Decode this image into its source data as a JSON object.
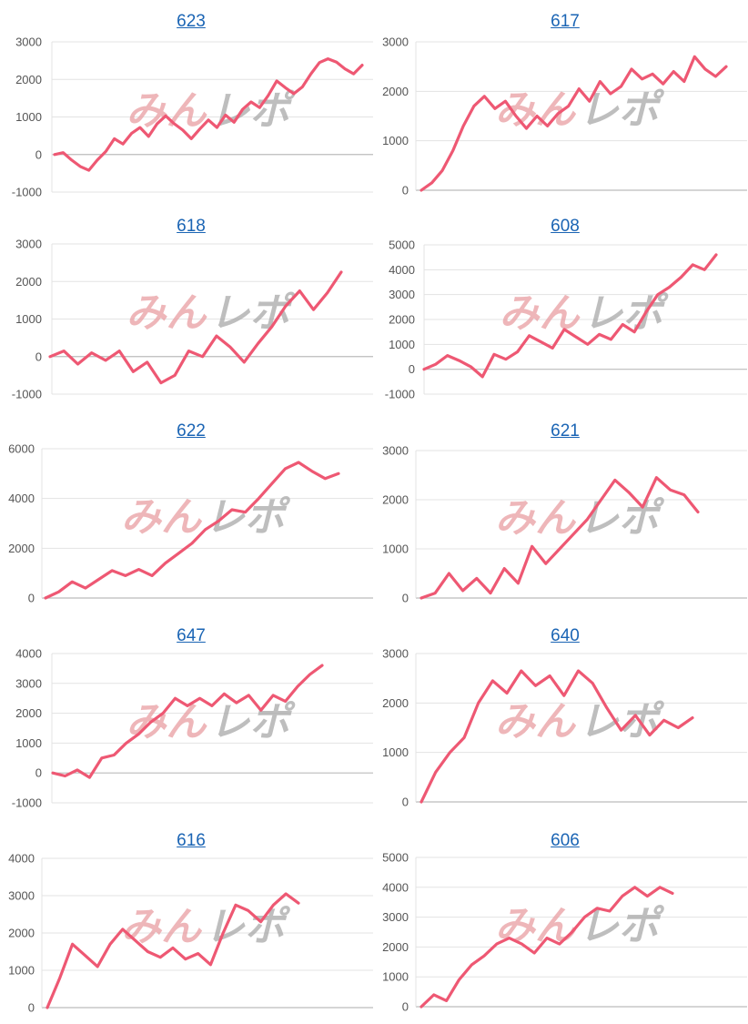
{
  "colors": {
    "line": "#ee5873",
    "title_link": "#1a64b4",
    "grid": "#e3e3e3",
    "axis": "#bcbcbc",
    "tick_text": "#555555"
  },
  "watermark": {
    "icon": "minrepo-watermark-logo",
    "text": "みんレポ"
  },
  "chart_data": [
    {
      "type": "line",
      "title": "623",
      "ylim": [
        -1000,
        3000
      ],
      "yticks": [
        -1000,
        0,
        1000,
        2000,
        3000
      ],
      "grid": true,
      "series": [
        {
          "y": [
            0,
            50,
            -150,
            -320,
            -420,
            -150,
            80,
            420,
            280,
            560,
            720,
            480,
            820,
            1030,
            820,
            650,
            420,
            680,
            920,
            720,
            1050,
            860,
            1200,
            1400,
            1250,
            1570,
            1960,
            1780,
            1620,
            1800,
            2150,
            2450,
            2550,
            2460,
            2280,
            2150,
            2380
          ]
        }
      ]
    },
    {
      "type": "line",
      "title": "617",
      "ylim": [
        0,
        3000
      ],
      "yticks": [
        0,
        1000,
        2000,
        3000
      ],
      "grid": true,
      "series": [
        {
          "y": [
            0,
            150,
            400,
            800,
            1300,
            1700,
            1900,
            1650,
            1800,
            1500,
            1250,
            1500,
            1300,
            1550,
            1700,
            2050,
            1800,
            2200,
            1950,
            2100,
            2450,
            2250,
            2350,
            2150,
            2400,
            2200,
            2700,
            2450,
            2300,
            2500
          ]
        }
      ]
    },
    {
      "type": "line",
      "title": "618",
      "ylim": [
        -1000,
        3000
      ],
      "yticks": [
        -1000,
        0,
        1000,
        2000,
        3000
      ],
      "grid": true,
      "series": [
        {
          "y": [
            0,
            150,
            -200,
            100,
            -100,
            150,
            -400,
            -150,
            -700,
            -500,
            150,
            0,
            550,
            250,
            -150,
            350,
            800,
            1350,
            1750,
            1250,
            1700,
            2250
          ]
        }
      ]
    },
    {
      "type": "line",
      "title": "608",
      "ylim": [
        -1000,
        5000
      ],
      "yticks": [
        -1000,
        0,
        1000,
        2000,
        3000,
        4000,
        5000
      ],
      "grid": true,
      "series": [
        {
          "y": [
            0,
            200,
            550,
            350,
            100,
            -300,
            600,
            400,
            700,
            1350,
            1100,
            850,
            1600,
            1300,
            1000,
            1400,
            1200,
            1800,
            1500,
            2300,
            3000,
            3300,
            3700,
            4200,
            4000,
            4600
          ]
        }
      ]
    },
    {
      "type": "line",
      "title": "622",
      "ylim": [
        0,
        6000
      ],
      "yticks": [
        0,
        2000,
        4000,
        6000
      ],
      "grid": true,
      "series": [
        {
          "y": [
            0,
            250,
            650,
            400,
            750,
            1100,
            900,
            1150,
            900,
            1400,
            1800,
            2200,
            2750,
            3100,
            3550,
            3450,
            4000,
            4600,
            5200,
            5450,
            5100,
            4800,
            5000
          ]
        }
      ]
    },
    {
      "type": "line",
      "title": "621",
      "ylim": [
        0,
        3000
      ],
      "yticks": [
        0,
        1000,
        2000,
        3000
      ],
      "grid": true,
      "series": [
        {
          "y": [
            0,
            100,
            500,
            150,
            400,
            100,
            600,
            300,
            1050,
            700,
            1000,
            1300,
            1600,
            2000,
            2400,
            2150,
            1850,
            2450,
            2200,
            2100,
            1750
          ]
        }
      ]
    },
    {
      "type": "line",
      "title": "647",
      "ylim": [
        -1000,
        4000
      ],
      "yticks": [
        -1000,
        0,
        1000,
        2000,
        3000,
        4000
      ],
      "grid": true,
      "series": [
        {
          "y": [
            0,
            -100,
            100,
            -150,
            500,
            600,
            1000,
            1300,
            1700,
            2000,
            2500,
            2250,
            2500,
            2250,
            2650,
            2350,
            2600,
            2100,
            2600,
            2400,
            2900,
            3300,
            3600
          ]
        }
      ]
    },
    {
      "type": "line",
      "title": "640",
      "ylim": [
        0,
        3000
      ],
      "yticks": [
        0,
        1000,
        2000,
        3000
      ],
      "grid": true,
      "series": [
        {
          "y": [
            0,
            600,
            1000,
            1300,
            2000,
            2450,
            2200,
            2650,
            2350,
            2550,
            2150,
            2650,
            2400,
            1900,
            1450,
            1750,
            1350,
            1650,
            1500,
            1700
          ]
        }
      ]
    },
    {
      "type": "line",
      "title": "616",
      "ylim": [
        0,
        4000
      ],
      "yticks": [
        0,
        1000,
        2000,
        3000,
        4000
      ],
      "grid": true,
      "series": [
        {
          "y": [
            0,
            800,
            1700,
            1400,
            1100,
            1700,
            2100,
            1800,
            1500,
            1350,
            1600,
            1300,
            1450,
            1150,
            2000,
            2750,
            2600,
            2300,
            2750,
            3050,
            2800
          ]
        }
      ]
    },
    {
      "type": "line",
      "title": "606",
      "ylim": [
        0,
        5000
      ],
      "yticks": [
        0,
        1000,
        2000,
        3000,
        4000,
        5000
      ],
      "grid": true,
      "series": [
        {
          "y": [
            0,
            400,
            200,
            900,
            1400,
            1700,
            2100,
            2300,
            2100,
            1800,
            2300,
            2100,
            2500,
            3000,
            3300,
            3200,
            3700,
            4000,
            3700,
            4000,
            3800
          ]
        }
      ]
    }
  ]
}
